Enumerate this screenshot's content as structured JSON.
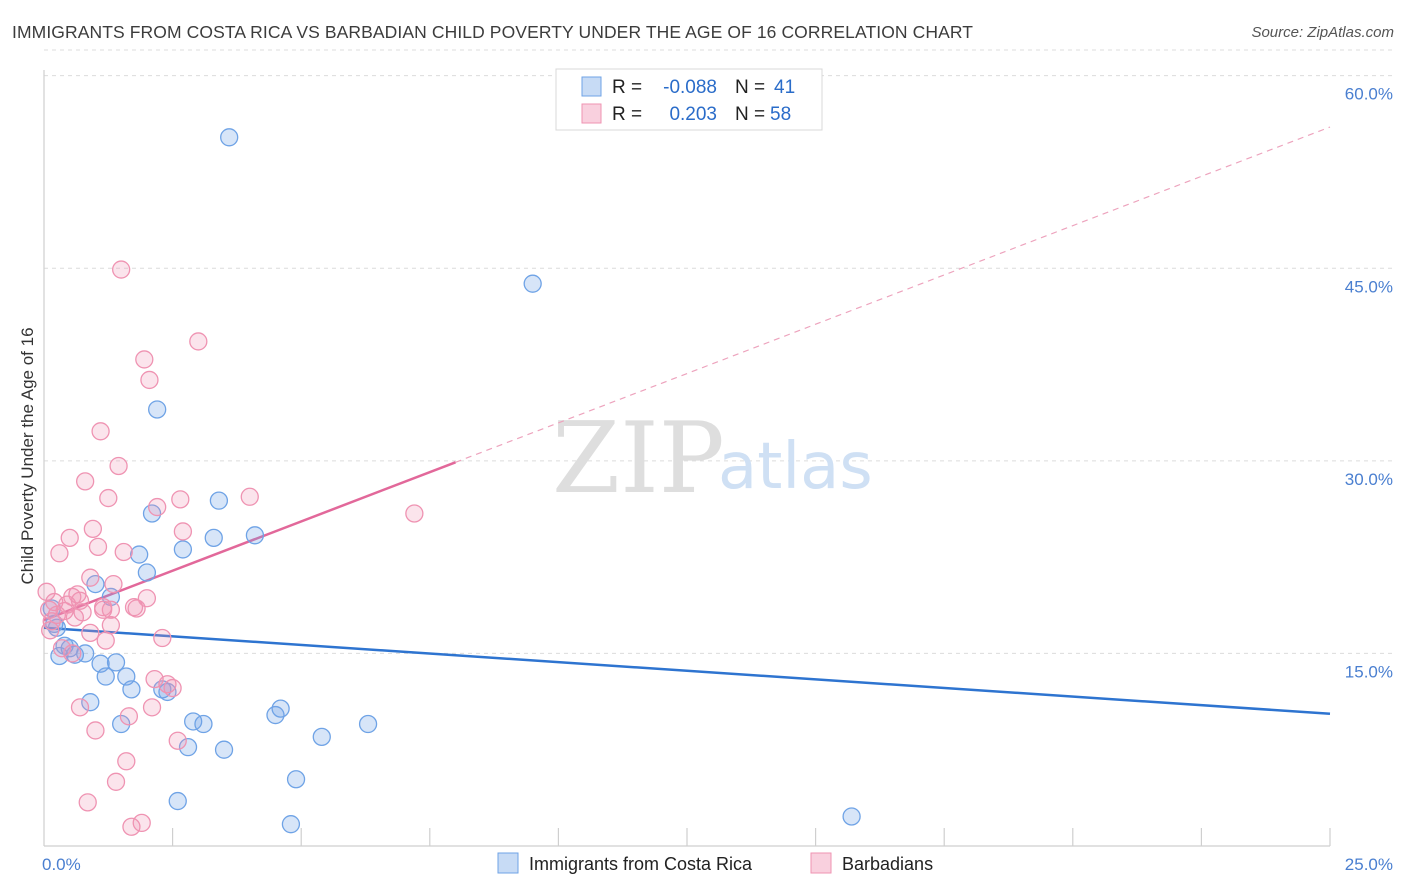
{
  "header": {
    "title": "IMMIGRANTS FROM COSTA RICA VS BARBADIAN CHILD POVERTY UNDER THE AGE OF 16 CORRELATION CHART",
    "source": "Source: ZipAtlas.com"
  },
  "watermark": {
    "zip": "ZIP",
    "atlas": "atlas"
  },
  "legend": {
    "rows": [
      {
        "r_label": "R =",
        "r_value": "-0.088",
        "n_label": "N =",
        "n_value": "41",
        "color": "#6fa3e6"
      },
      {
        "r_label": "R =",
        "r_value": "0.203",
        "n_label": "N =",
        "n_value": "58",
        "color": "#ef93b2"
      }
    ]
  },
  "chart_data": {
    "type": "scatter",
    "title": "IMMIGRANTS FROM COSTA RICA VS BARBADIAN CHILD POVERTY UNDER THE AGE OF 16 CORRELATION CHART",
    "xlabel": "",
    "ylabel": "Child Poverty Under the Age of 16",
    "xlim": [
      0,
      25
    ],
    "ylim": [
      0,
      62
    ],
    "x_tick_labels": [
      {
        "value": 0,
        "label": "0.0%"
      },
      {
        "value": 25,
        "label": "25.0%"
      }
    ],
    "y_tick_labels": [
      {
        "value": 15,
        "label": "15.0%"
      },
      {
        "value": 30,
        "label": "30.0%"
      },
      {
        "value": 45,
        "label": "45.0%"
      },
      {
        "value": 60,
        "label": "60.0%"
      }
    ],
    "series": [
      {
        "name": "Immigrants from Costa Rica",
        "color": "#6fa3e6",
        "trend": {
          "x0": 0,
          "y0": 17.0,
          "x1": 25,
          "y1": 10.3,
          "dashed_from": null
        },
        "points": [
          [
            0.2,
            17.3
          ],
          [
            0.3,
            14.8
          ],
          [
            0.5,
            15.4
          ],
          [
            0.6,
            14.9
          ],
          [
            0.8,
            15.0
          ],
          [
            0.9,
            11.2
          ],
          [
            1.0,
            20.4
          ],
          [
            1.1,
            14.2
          ],
          [
            1.2,
            13.2
          ],
          [
            1.3,
            19.4
          ],
          [
            1.4,
            14.3
          ],
          [
            1.5,
            9.5
          ],
          [
            1.6,
            13.2
          ],
          [
            1.7,
            12.2
          ],
          [
            1.85,
            22.7
          ],
          [
            2.0,
            21.3
          ],
          [
            2.1,
            25.9
          ],
          [
            2.2,
            34.0
          ],
          [
            2.3,
            12.2
          ],
          [
            2.4,
            12.0
          ],
          [
            2.6,
            3.5
          ],
          [
            2.7,
            23.1
          ],
          [
            2.8,
            7.7
          ],
          [
            2.9,
            9.7
          ],
          [
            3.1,
            9.5
          ],
          [
            3.3,
            24.0
          ],
          [
            3.4,
            26.9
          ],
          [
            3.5,
            7.5
          ],
          [
            3.6,
            55.2
          ],
          [
            4.1,
            24.2
          ],
          [
            4.5,
            10.2
          ],
          [
            4.6,
            10.7
          ],
          [
            4.8,
            1.7
          ],
          [
            4.9,
            5.2
          ],
          [
            5.4,
            8.5
          ],
          [
            6.3,
            9.5
          ],
          [
            9.5,
            43.8
          ],
          [
            15.7,
            2.3
          ],
          [
            0.15,
            18.5
          ],
          [
            0.4,
            15.6
          ],
          [
            0.25,
            17.0
          ]
        ]
      },
      {
        "name": "Barbadians",
        "color": "#ef93b2",
        "trend": {
          "x0": 0,
          "y0": 17.6,
          "x1": 25,
          "y1": 56.0,
          "dashed_from": 8.0
        },
        "points": [
          [
            0.05,
            19.8
          ],
          [
            0.1,
            18.4
          ],
          [
            0.15,
            17.5
          ],
          [
            0.2,
            19.0
          ],
          [
            0.25,
            18.0
          ],
          [
            0.3,
            22.8
          ],
          [
            0.35,
            15.4
          ],
          [
            0.4,
            18.3
          ],
          [
            0.45,
            18.8
          ],
          [
            0.5,
            24.0
          ],
          [
            0.55,
            19.4
          ],
          [
            0.6,
            17.8
          ],
          [
            0.65,
            19.6
          ],
          [
            0.7,
            10.8
          ],
          [
            0.75,
            18.2
          ],
          [
            0.8,
            28.4
          ],
          [
            0.85,
            3.4
          ],
          [
            0.9,
            20.9
          ],
          [
            0.95,
            24.7
          ],
          [
            1.0,
            9.0
          ],
          [
            1.05,
            23.3
          ],
          [
            1.1,
            32.3
          ],
          [
            1.15,
            18.4
          ],
          [
            1.2,
            16.0
          ],
          [
            1.25,
            27.1
          ],
          [
            1.3,
            17.2
          ],
          [
            1.35,
            20.4
          ],
          [
            1.4,
            5.0
          ],
          [
            1.45,
            29.6
          ],
          [
            1.5,
            44.9
          ],
          [
            1.55,
            22.9
          ],
          [
            1.6,
            6.6
          ],
          [
            1.65,
            10.1
          ],
          [
            1.7,
            1.5
          ],
          [
            1.75,
            18.6
          ],
          [
            1.9,
            1.8
          ],
          [
            1.95,
            37.9
          ],
          [
            2.0,
            19.3
          ],
          [
            2.05,
            36.3
          ],
          [
            2.1,
            10.8
          ],
          [
            2.15,
            13.0
          ],
          [
            2.2,
            26.4
          ],
          [
            2.3,
            16.2
          ],
          [
            2.5,
            12.3
          ],
          [
            2.6,
            8.2
          ],
          [
            2.7,
            24.5
          ],
          [
            2.65,
            27.0
          ],
          [
            3.0,
            39.3
          ],
          [
            4.0,
            27.2
          ],
          [
            7.2,
            25.9
          ],
          [
            0.12,
            16.8
          ],
          [
            0.9,
            16.6
          ],
          [
            1.3,
            18.4
          ],
          [
            1.8,
            18.5
          ],
          [
            2.4,
            12.6
          ],
          [
            0.55,
            15.0
          ],
          [
            1.15,
            18.6
          ],
          [
            0.7,
            19.1
          ]
        ]
      }
    ]
  },
  "bottom_legend": [
    {
      "label": "Immigrants from Costa Rica",
      "color": "#6fa3e6"
    },
    {
      "label": "Barbadians",
      "color": "#ef93b2"
    }
  ]
}
